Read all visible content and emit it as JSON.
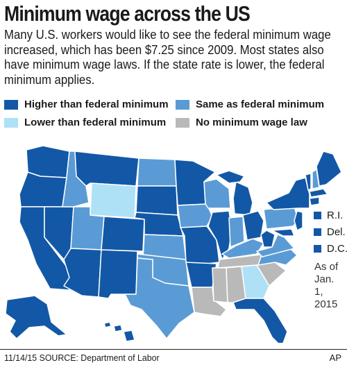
{
  "header": {
    "title": "Minimum wage across the US",
    "subtitle": "Many U.S. workers would like to see the federal minimum wage increased, which has been $7.25 since 2009. Most states also have minimum wage laws. If the state rate is lower, the federal minimum applies."
  },
  "legend": [
    {
      "label": "Higher than federal minimum",
      "color": "#1358a6"
    },
    {
      "label": "Same as federal minimum",
      "color": "#5b9bd5"
    },
    {
      "label": "Lower than federal minimum",
      "color": "#aee1f6"
    },
    {
      "label": "No minimum wage law",
      "color": "#b9b9b9"
    }
  ],
  "small_states": [
    {
      "label": "R.I.",
      "color": "#1358a6"
    },
    {
      "label": "Del.",
      "color": "#1358a6"
    },
    {
      "label": "D.C.",
      "color": "#1358a6"
    }
  ],
  "as_of": "As of Jan. 1, 2015",
  "footer": {
    "source": "11/14/15 SOURCE: Department of Labor",
    "credit": "AP"
  }
}
